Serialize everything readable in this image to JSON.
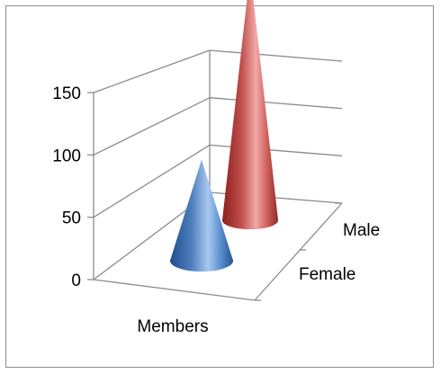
{
  "chart_data": {
    "type": "bar",
    "mark_shape": "3d-cone",
    "categories": [
      "Members"
    ],
    "series": [
      {
        "name": "Female",
        "values": [
          50
        ],
        "color": "#4f81bd"
      },
      {
        "name": "Male",
        "values": [
          125
        ],
        "color": "#c0504d"
      }
    ],
    "y_ticks": [
      "0",
      "50",
      "100",
      "150"
    ],
    "ylim": [
      0,
      150
    ],
    "grid": true,
    "legend": "none",
    "title": "",
    "xlabel": "",
    "ylabel": ""
  }
}
